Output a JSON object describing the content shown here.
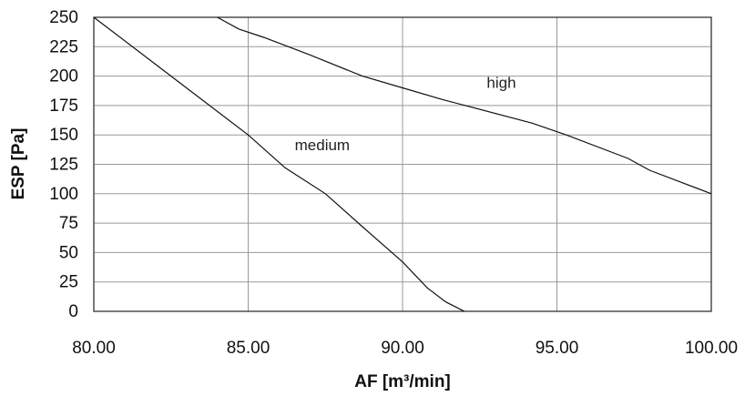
{
  "chart_data": {
    "type": "line",
    "title": "",
    "xlabel": "AF [m³/min]",
    "ylabel": "ESP [Pa]",
    "xlim": [
      80,
      100
    ],
    "ylim": [
      0,
      250
    ],
    "x_ticks": [
      "80.00",
      "85.00",
      "90.00",
      "95.00",
      "100.00"
    ],
    "y_ticks": [
      "0",
      "25",
      "50",
      "75",
      "100",
      "125",
      "150",
      "175",
      "200",
      "225",
      "250"
    ],
    "grid": true,
    "legend": "none",
    "series": [
      {
        "name": "medium",
        "points": [
          [
            80,
            250
          ],
          [
            82.5,
            200
          ],
          [
            85,
            150
          ],
          [
            86.2,
            122
          ],
          [
            87.5,
            100
          ],
          [
            88.7,
            72
          ],
          [
            90,
            42
          ],
          [
            90.8,
            20
          ],
          [
            91.4,
            8
          ],
          [
            92,
            0
          ]
        ]
      },
      {
        "name": "high",
        "points": [
          [
            84,
            250
          ],
          [
            84.7,
            240
          ],
          [
            85.5,
            233
          ],
          [
            87,
            218
          ],
          [
            88.7,
            200
          ],
          [
            90,
            190
          ],
          [
            91.3,
            180
          ],
          [
            94.2,
            160
          ],
          [
            95.3,
            150
          ],
          [
            97.3,
            130
          ],
          [
            98,
            120
          ],
          [
            99,
            110
          ],
          [
            100,
            100
          ]
        ]
      }
    ],
    "colors": {
      "line": "#111111",
      "grid": "#999999",
      "frame": "#222222"
    }
  }
}
